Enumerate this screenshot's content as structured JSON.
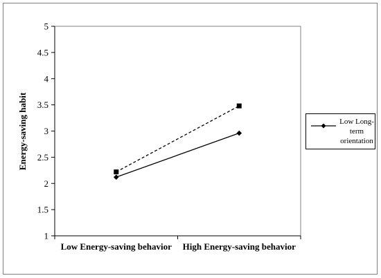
{
  "chart_data": {
    "type": "line",
    "title": "",
    "xlabel": "",
    "ylabel": "Energy-saving habit",
    "categories": [
      "Low Energy-saving behavior",
      "High Energy-saving behavior"
    ],
    "ylim": [
      1,
      5
    ],
    "yticks": [
      "1",
      "1.5",
      "2",
      "2.5",
      "3",
      "3.5",
      "4",
      "4.5",
      "5"
    ],
    "grid": false,
    "legend_position": "right",
    "series": [
      {
        "name": "Low Long-term orientation",
        "values": [
          2.12,
          2.96
        ],
        "marker": "diamond",
        "line_style": "solid",
        "color": "#000000"
      },
      {
        "values": [
          2.22,
          3.48
        ],
        "marker": "square",
        "line_style": "dashed",
        "color": "#000000"
      }
    ]
  }
}
